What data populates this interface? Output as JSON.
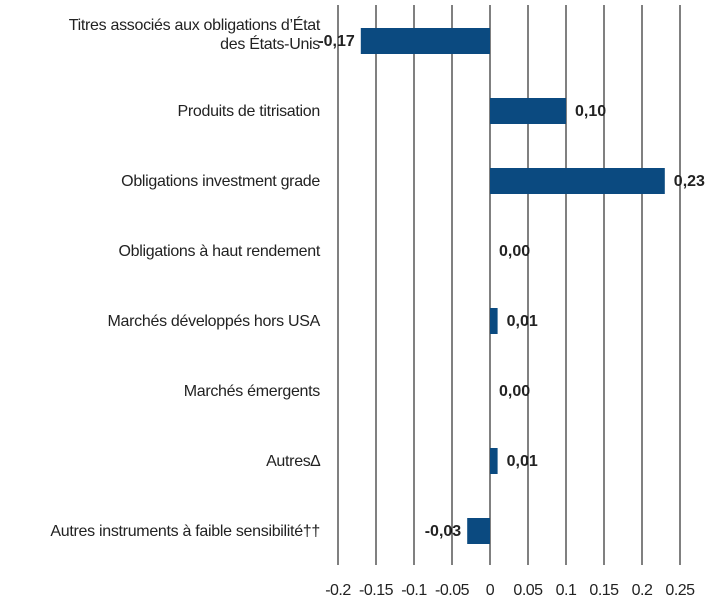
{
  "chart_data": {
    "type": "bar",
    "orientation": "horizontal",
    "categories": [
      "Titres associés aux obligations d’État\ndes États-Unis",
      "Produits de titrisation",
      "Obligations investment grade",
      "Obligations à haut rendement",
      "Marchés développés hors USA",
      "Marchés émergents",
      "Autres∆",
      "Autres instruments à faible sensibilité††"
    ],
    "values": [
      -0.17,
      0.1,
      0.23,
      0.0,
      0.01,
      0.0,
      0.01,
      -0.03
    ],
    "value_labels": [
      "-0,17",
      "0,10",
      "0,23",
      "0,00",
      "0,01",
      "0,00",
      "0,01",
      "-0,03"
    ],
    "color": "#0b4a80",
    "xlim": [
      -0.2,
      0.25
    ],
    "xticks": [
      -0.2,
      -0.15,
      -0.1,
      -0.05,
      0,
      0.05,
      0.1,
      0.15,
      0.2,
      0.25
    ],
    "grid": true
  }
}
